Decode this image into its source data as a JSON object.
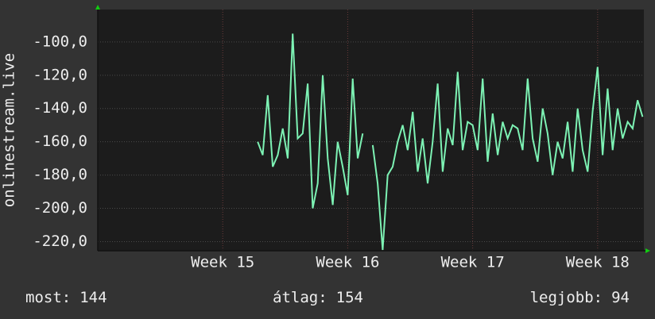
{
  "chart_data": {
    "type": "line",
    "y_label": "onlinestream.live",
    "x": [
      15.28,
      15.32,
      15.36,
      15.4,
      15.44,
      15.48,
      15.52,
      15.56,
      15.6,
      15.64,
      15.68,
      15.72,
      15.76,
      15.8,
      15.84,
      15.88,
      15.92,
      15.96,
      16.0,
      16.04,
      16.08,
      16.12,
      16.16,
      16.2,
      16.24,
      16.28,
      16.32,
      16.36,
      16.4,
      16.44,
      16.48,
      16.52,
      16.56,
      16.6,
      16.64,
      16.68,
      16.72,
      16.76,
      16.8,
      16.84,
      16.88,
      16.92,
      16.96,
      17.0,
      17.04,
      17.08,
      17.12,
      17.16,
      17.2,
      17.24,
      17.28,
      17.32,
      17.36,
      17.4,
      17.44,
      17.48,
      17.52,
      17.56,
      17.6,
      17.64,
      17.68,
      17.72,
      17.76,
      17.8,
      17.84,
      17.88,
      17.92,
      17.96,
      18.0,
      18.04,
      18.08,
      18.12,
      18.16,
      18.2,
      18.24,
      18.28,
      18.32,
      18.36
    ],
    "series": [
      {
        "color": "#7df2b4",
        "values": [
          -160,
          -168,
          -132,
          -175,
          -168,
          -152,
          -170,
          -95,
          -158,
          -155,
          -125,
          -200,
          -185,
          -120,
          -170,
          -198,
          -160,
          -175,
          -192,
          -122,
          -170,
          -155,
          null,
          -162,
          -185,
          -225,
          -180,
          -175,
          -160,
          -150,
          -165,
          -142,
          -178,
          -158,
          -185,
          -160,
          -125,
          -178,
          -152,
          -162,
          -118,
          -165,
          -148,
          -150,
          -165,
          -122,
          -172,
          -143,
          -168,
          -148,
          -158,
          -150,
          -152,
          -165,
          -122,
          -158,
          -172,
          -140,
          -155,
          -180,
          -160,
          -170,
          -148,
          -178,
          -140,
          -165,
          -178,
          -142,
          -115,
          -168,
          -128,
          -165,
          -140,
          -158,
          -148,
          -152,
          -135,
          -145
        ]
      }
    ],
    "xlim": [
      14.0,
      18.37
    ],
    "xticks": [
      {
        "value": 15,
        "label": "Week 15"
      },
      {
        "value": 16,
        "label": "Week 16"
      },
      {
        "value": 17,
        "label": "Week 17"
      },
      {
        "value": 18,
        "label": "Week 18"
      }
    ],
    "ylim": [
      -225.5,
      -80.5
    ],
    "yticks": [
      {
        "value": -100,
        "label": "-100,0"
      },
      {
        "value": -120,
        "label": "-120,0"
      },
      {
        "value": -140,
        "label": "-140,0"
      },
      {
        "value": -160,
        "label": "-160,0"
      },
      {
        "value": -180,
        "label": "-180,0"
      },
      {
        "value": -200,
        "label": "-200,0"
      },
      {
        "value": -220,
        "label": "-220,0"
      }
    ],
    "grid": true,
    "footer": [
      {
        "label": "most:",
        "value": 144
      },
      {
        "label": "átlag:",
        "value": 154
      },
      {
        "label": "legjobb:",
        "value": 94
      }
    ]
  }
}
